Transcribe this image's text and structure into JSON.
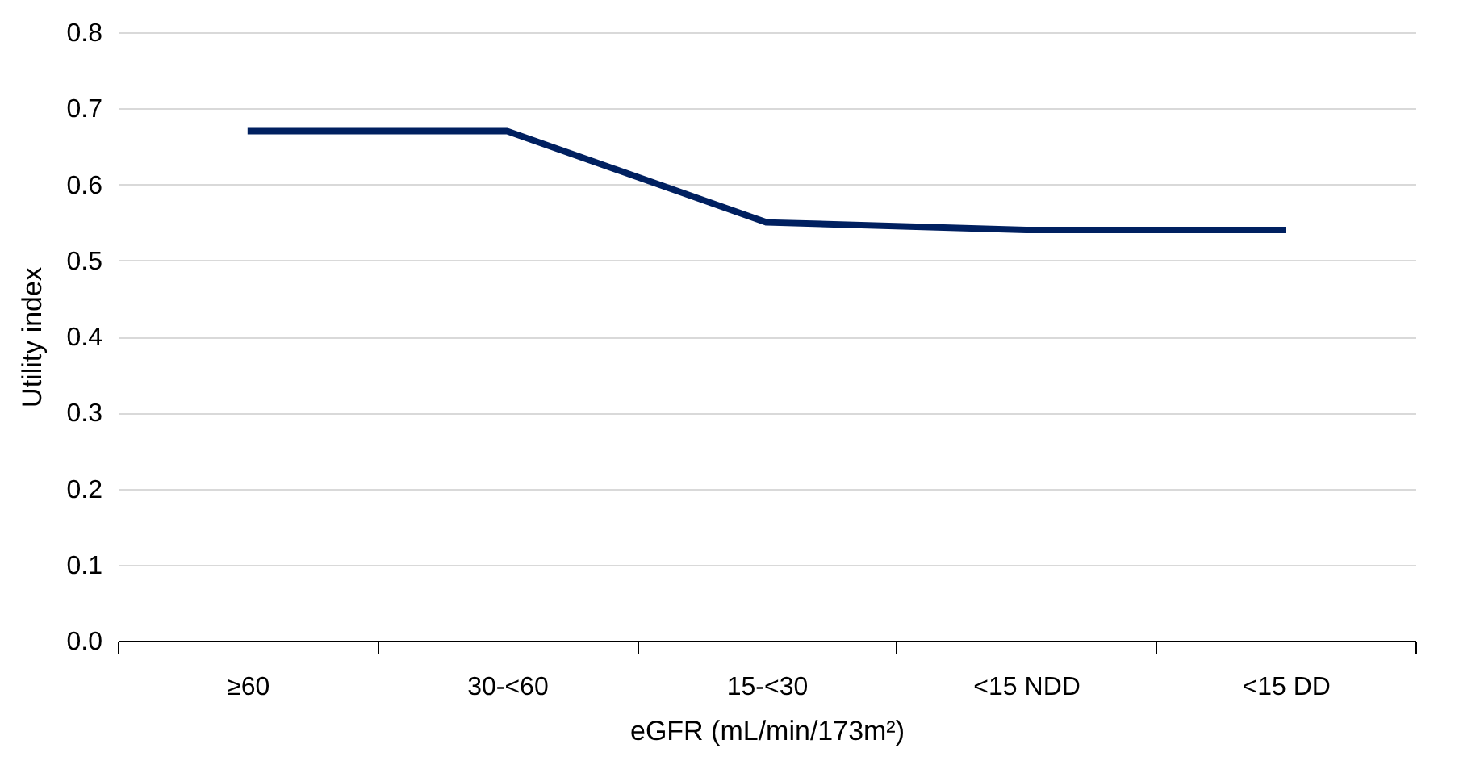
{
  "chart_data": {
    "type": "line",
    "xlabel": "eGFR (mL/min/173m²)",
    "ylabel": "Utility index",
    "categories": [
      "≥60",
      "30-<60",
      "15-<30",
      "<15 NDD",
      "<15 DD"
    ],
    "series": [
      {
        "color": "#002060",
        "values": [
          0.67,
          0.67,
          0.55,
          0.54,
          0.54
        ]
      }
    ],
    "ylim": [
      0,
      0.8
    ],
    "yticks": [
      {
        "value": 0,
        "label": "0.0"
      },
      {
        "value": 0.1,
        "label": "0.1"
      },
      {
        "value": 0.2,
        "label": "0.2"
      },
      {
        "value": 0.3,
        "label": "0.3"
      },
      {
        "value": 0.4,
        "label": "0.4"
      },
      {
        "value": 0.5,
        "label": "0.5"
      },
      {
        "value": 0.6,
        "label": "0.6"
      },
      {
        "value": 0.7,
        "label": "0.7"
      },
      {
        "value": 0.8,
        "label": "0.8"
      }
    ],
    "grid": "y",
    "marker": "none",
    "line_style": "solid"
  }
}
